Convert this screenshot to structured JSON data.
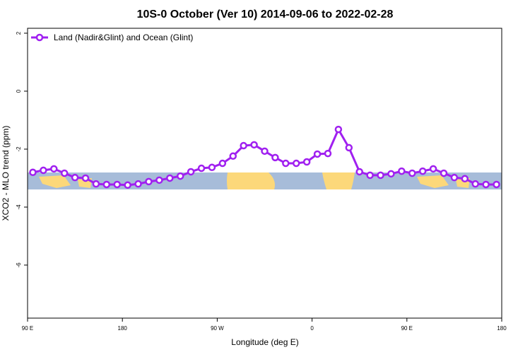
{
  "chart_data": {
    "type": "line",
    "title": "10S-0 October (Ver 10)   2014-09-06 to 2022-02-28",
    "x_label": "Longitude (deg E)",
    "y_label": "XCO2 - MLO trend (ppm)",
    "x": [
      95,
      105,
      115,
      125,
      135,
      145,
      155,
      165,
      175,
      185,
      195,
      205,
      215,
      225,
      235,
      245,
      255,
      265,
      275,
      285,
      295,
      305,
      315,
      325,
      335,
      345,
      355,
      365,
      375,
      385,
      395,
      405,
      415,
      425,
      435,
      445,
      455,
      465,
      475,
      485,
      495,
      505,
      515,
      525,
      535
    ],
    "series": [
      {
        "name": "Land (Nadir&Glint) and Ocean (Glint)",
        "color": "#a020f0",
        "values": [
          -2.8,
          -2.73,
          -2.68,
          -2.83,
          -2.98,
          -3.0,
          -3.2,
          -3.22,
          -3.22,
          -3.24,
          -3.2,
          -3.12,
          -3.07,
          -3.0,
          -2.93,
          -2.78,
          -2.66,
          -2.63,
          -2.49,
          -2.24,
          -1.88,
          -1.85,
          -2.07,
          -2.29,
          -2.49,
          -2.49,
          -2.44,
          -2.17,
          -2.15,
          -1.32,
          -1.95,
          -2.78,
          -2.9,
          -2.9,
          -2.85,
          -2.76,
          -2.83,
          -2.76,
          -2.68,
          -2.83,
          -2.98,
          -3.02,
          -3.2,
          -3.22,
          -3.22
        ]
      }
    ],
    "xlim": [
      90,
      540
    ],
    "xticks": [
      {
        "value": 90,
        "label": "90 E"
      },
      {
        "value": 180,
        "label": "180"
      },
      {
        "value": 270,
        "label": "90 W"
      },
      {
        "value": 360,
        "label": "0"
      },
      {
        "value": 450,
        "label": "90 E"
      },
      {
        "value": 540,
        "label": "180"
      }
    ],
    "ylim": [
      -7.83,
      2.17
    ],
    "yticks": [
      -6,
      -4,
      -2,
      0,
      2
    ],
    "legend": "upper left"
  }
}
